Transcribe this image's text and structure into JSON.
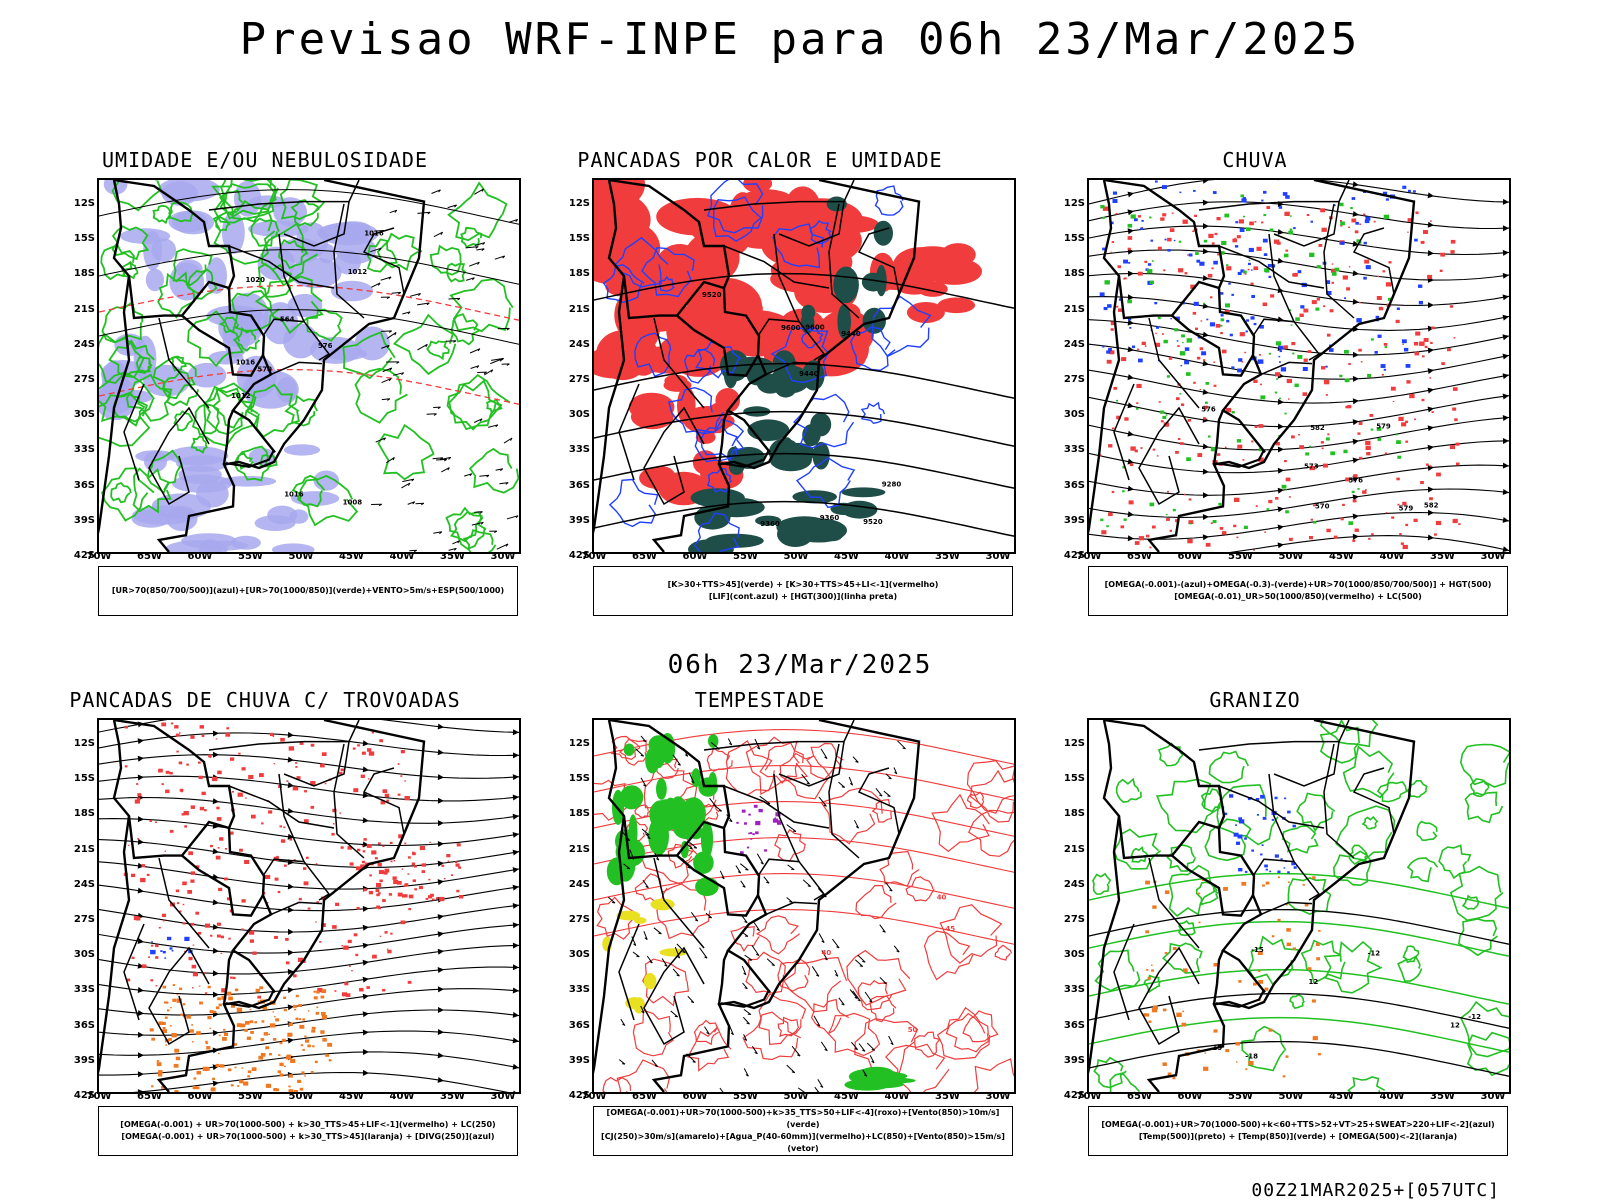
{
  "header": {
    "title": "Previsao WRF-INPE  para 06h 23/Mar/2025"
  },
  "middle_title": "06h 23/Mar/2025",
  "footer": "00Z21MAR2025+[057UTC]",
  "lat_labels": [
    "12S",
    "15S",
    "18S",
    "21S",
    "24S",
    "27S",
    "30S",
    "33S",
    "36S",
    "39S",
    "42S"
  ],
  "lon_labels": [
    "70W",
    "65W",
    "60W",
    "55W",
    "50W",
    "45W",
    "40W",
    "35W",
    "30W"
  ],
  "colors": {
    "red": "#f03c3c",
    "green": "#22c022",
    "blue": "#2040ff",
    "lavender": "#a8a8ee",
    "darkgreen": "#1f4d47",
    "orange": "#f07820",
    "yellow": "#e8e020",
    "purple": "#a020c0"
  },
  "panels": [
    {
      "title": "UMIDADE E/OU NEBULOSIDADE",
      "legend": [
        "[UR>70(850/700/500)](azul)+[UR>70(1000/850)](verde)+VENTO>5m/s+ESP(500/1000)"
      ],
      "labels": [
        "1012",
        "1016",
        "1008",
        "1020",
        "576",
        "570",
        "564",
        "1012",
        "1016",
        "1016"
      ]
    },
    {
      "title": "PANCADAS POR CALOR E UMIDADE",
      "legend": [
        "[K>30+TTS>45](verde) + [K>30+TTS>45+LI<-1](vermelho)",
        "[LIF](cont.azul) + [HGT(300)](linha preta)"
      ],
      "labels": [
        "9600",
        "9520",
        "9440",
        "9360",
        "9280",
        "9600",
        "9520",
        "9440",
        "9360"
      ]
    },
    {
      "title": "CHUVA",
      "legend": [
        "[OMEGA(-0.001)-(azul)+OMEGA(-0.3)-(verde)+UR>70(1000/850/700/500)] + HGT(500)",
        "[OMEGA(-0.01)_UR>50(1000/850)(vermelho) + LC(500)"
      ],
      "labels": [
        "582",
        "579",
        "576",
        "573",
        "570",
        "582",
        "579",
        "576"
      ]
    },
    {
      "title": "PANCADAS DE CHUVA C/ TROVOADAS",
      "legend": [
        "[OMEGA(-0.001) + UR>70(1000-500) + k>30_TTS>45+LIF<-1](vermelho) + LC(250)",
        "[OMEGA(-0.001) + UR>70(1000-500) + k>30_TTS>45](laranja) + [DIVG(250)](azul)"
      ],
      "labels": []
    },
    {
      "title": "TEMPESTADE",
      "legend": [
        "[OMEGA(-0.001)+UR>70(1000-500)+k>35_TTS>50+LIF<-4](roxo)+[Vento(850)>10m/s](verde)",
        "[CJ(250)>30m/s](amarelo)+[Agua_P(40-60mm)](vermelho)+LC(850)+[Vento(850)>15m/s](vetor)"
      ],
      "labels": [
        "40",
        "50",
        "45",
        "40"
      ]
    },
    {
      "title": "GRANIZO",
      "legend": [
        "[OMEGA(-0.001)+UR>70(1000-500)+k<60+TTS>52+VT>25+SWEAT>220+LIF<-2](azul)",
        "[Temp(500)](preto) + [Temp(850)](verde) + [OMEGA(500)<-2](laranja)"
      ],
      "labels": [
        "-12",
        "-12",
        "-15",
        "-18",
        "12",
        "15",
        "12"
      ]
    }
  ]
}
